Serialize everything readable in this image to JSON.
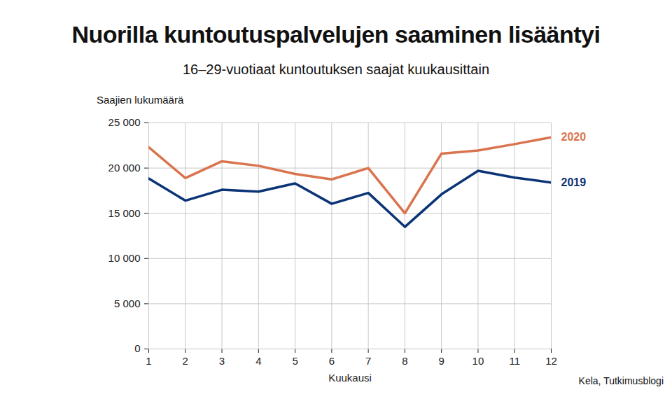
{
  "chart_data": {
    "type": "line",
    "title": "Nuorilla kuntoutuspalvelujen saaminen lisääntyi",
    "subtitle": "16–29-vuotiaat kuntoutuksen saajat kuukausittain",
    "y_label": "Saajien lukumäärä",
    "x_label": "Kuukausi",
    "source": "Kela, Tutkimusblogi",
    "x": [
      1,
      2,
      3,
      4,
      5,
      6,
      7,
      8,
      9,
      10,
      11,
      12
    ],
    "series": [
      {
        "name": "2020",
        "color": "#d9744e",
        "values": [
          22300,
          18900,
          20750,
          20250,
          19350,
          18750,
          20000,
          15000,
          21600,
          21950,
          22650,
          23400
        ]
      },
      {
        "name": "2019",
        "color": "#0b3477",
        "values": [
          18850,
          16400,
          17600,
          17400,
          18300,
          16050,
          17250,
          13500,
          17100,
          19700,
          18950,
          18400
        ]
      }
    ],
    "xlim": [
      1,
      12
    ],
    "xticks": [
      1,
      2,
      3,
      4,
      5,
      6,
      7,
      8,
      9,
      10,
      11,
      12
    ],
    "ylim": [
      0,
      25000
    ],
    "yticks": [
      0,
      {
        "value": 5000,
        "label": "5 000"
      },
      {
        "value": 10000,
        "label": "10 000"
      },
      {
        "value": 15000,
        "label": "15 000"
      },
      {
        "value": 20000,
        "label": "20 000"
      },
      {
        "value": 25000,
        "label": "25 000"
      }
    ],
    "grid": true
  }
}
